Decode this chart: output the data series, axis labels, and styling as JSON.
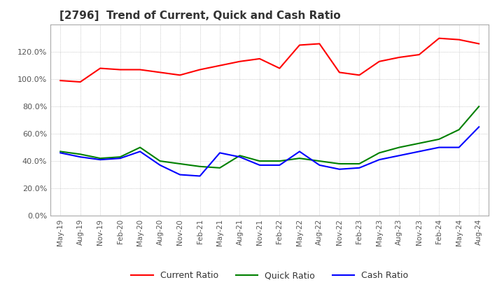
{
  "title": "[2796]  Trend of Current, Quick and Cash Ratio",
  "x_labels": [
    "May-19",
    "Aug-19",
    "Nov-19",
    "Feb-20",
    "May-20",
    "Aug-20",
    "Nov-20",
    "Feb-21",
    "May-21",
    "Aug-21",
    "Nov-21",
    "Feb-22",
    "May-22",
    "Aug-22",
    "Nov-22",
    "Feb-23",
    "May-23",
    "Aug-23",
    "Nov-23",
    "Feb-24",
    "May-24",
    "Aug-24"
  ],
  "current_ratio": [
    99,
    98,
    108,
    107,
    107,
    105,
    103,
    107,
    110,
    113,
    115,
    108,
    125,
    126,
    105,
    103,
    113,
    116,
    118,
    130,
    129,
    126
  ],
  "quick_ratio": [
    47,
    45,
    42,
    43,
    50,
    40,
    38,
    36,
    35,
    44,
    40,
    40,
    42,
    40,
    38,
    38,
    46,
    50,
    53,
    56,
    63,
    80
  ],
  "cash_ratio": [
    46,
    43,
    41,
    42,
    47,
    37,
    30,
    29,
    46,
    43,
    37,
    37,
    47,
    37,
    34,
    35,
    41,
    44,
    47,
    50,
    50,
    65
  ],
  "current_color": "#ff0000",
  "quick_color": "#008000",
  "cash_color": "#0000ff",
  "ylim": [
    0,
    140
  ],
  "yticks": [
    0,
    20,
    40,
    60,
    80,
    100,
    120
  ],
  "background_color": "#ffffff",
  "grid_color": "#aaaaaa"
}
